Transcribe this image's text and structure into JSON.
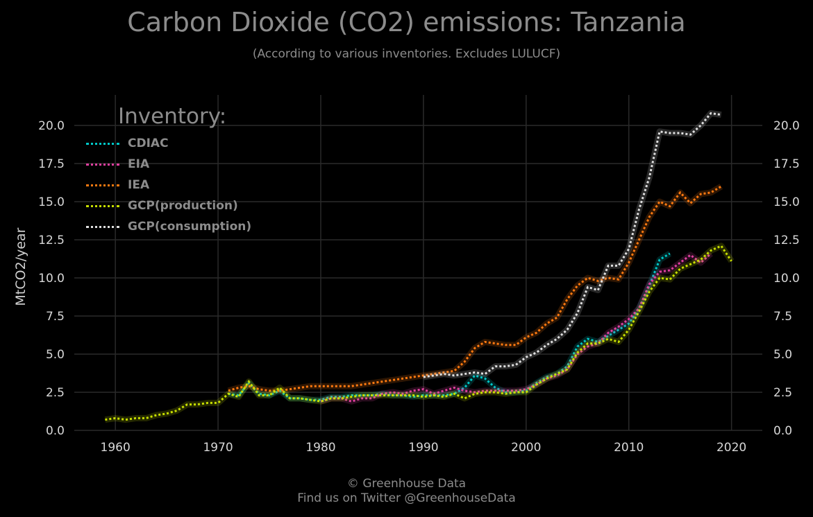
{
  "title": "Carbon Dioxide (CO2) emissions: Tanzania",
  "subtitle": "(According to various inventories. Excludes LULUCF)",
  "footer": {
    "line1": "© Greenhouse Data",
    "line2": "Find us on Twitter @GreenhouseData"
  },
  "legend": {
    "title": "Inventory:",
    "placement": "top-left"
  },
  "chart_data": {
    "type": "line",
    "ylabel": "MtCO2/year",
    "xlim": [
      1956,
      2023
    ],
    "ylim": [
      0,
      22
    ],
    "xticks": [
      "1960",
      "1970",
      "1980",
      "1990",
      "2000",
      "2010",
      "2020"
    ],
    "yticks": [
      "0.0",
      "2.5",
      "5.0",
      "7.5",
      "10.0",
      "12.5",
      "15.0",
      "17.5",
      "20.0"
    ],
    "grid": true,
    "line_style": "dotted",
    "series": [
      {
        "name": "CDIAC",
        "color": "#00c8c8",
        "x": [
          1971,
          1972,
          1973,
          1974,
          1975,
          1976,
          1977,
          1978,
          1979,
          1980,
          1981,
          1982,
          1983,
          1984,
          1985,
          1986,
          1987,
          1988,
          1989,
          1990,
          1991,
          1992,
          1993,
          1994,
          1995,
          1996,
          1997,
          1998,
          1999,
          2000,
          2001,
          2002,
          2003,
          2004,
          2005,
          2006,
          2007,
          2008,
          2009,
          2010,
          2011,
          2012,
          2013,
          2014
        ],
        "y": [
          2.4,
          2.3,
          3.1,
          2.4,
          2.3,
          2.6,
          2.1,
          2.1,
          2.0,
          2.0,
          2.2,
          2.2,
          2.3,
          2.3,
          2.3,
          2.4,
          2.3,
          2.3,
          2.2,
          2.3,
          2.3,
          2.3,
          2.4,
          2.8,
          3.6,
          3.4,
          2.8,
          2.5,
          2.5,
          2.6,
          3.1,
          3.5,
          3.7,
          4.2,
          5.5,
          6.0,
          5.8,
          6.2,
          6.6,
          7.0,
          8.0,
          9.5,
          11.2,
          11.6
        ]
      },
      {
        "name": "EIA",
        "color": "#e040a0",
        "x": [
          1980,
          1981,
          1982,
          1983,
          1984,
          1985,
          1986,
          1987,
          1988,
          1989,
          1990,
          1991,
          1992,
          1993,
          1994,
          1995,
          1996,
          1997,
          1998,
          1999,
          2000,
          2001,
          2002,
          2003,
          2004,
          2005,
          2006,
          2007,
          2008,
          2009,
          2010,
          2011,
          2012,
          2013,
          2014,
          2015,
          2016,
          2017,
          2018
        ],
        "y": [
          1.9,
          2.1,
          2.1,
          1.9,
          2.1,
          2.1,
          2.4,
          2.5,
          2.4,
          2.6,
          2.7,
          2.4,
          2.6,
          2.8,
          2.6,
          2.5,
          2.6,
          2.6,
          2.6,
          2.6,
          2.7,
          3.0,
          3.4,
          3.6,
          4.0,
          5.0,
          5.5,
          5.7,
          6.4,
          6.8,
          7.3,
          8.0,
          9.6,
          10.4,
          10.5,
          11.0,
          11.5,
          11.0,
          11.6
        ]
      },
      {
        "name": "IEA",
        "color": "#ff7a10",
        "x": [
          1971,
          1972,
          1973,
          1974,
          1975,
          1976,
          1977,
          1978,
          1979,
          1980,
          1981,
          1982,
          1983,
          1984,
          1985,
          1986,
          1987,
          1988,
          1989,
          1990,
          1991,
          1992,
          1993,
          1994,
          1995,
          1996,
          1997,
          1998,
          1999,
          2000,
          2001,
          2002,
          2003,
          2004,
          2005,
          2006,
          2007,
          2008,
          2009,
          2010,
          2011,
          2012,
          2013,
          2014,
          2015,
          2016,
          2017,
          2018,
          2019
        ],
        "y": [
          2.6,
          2.8,
          2.9,
          2.7,
          2.6,
          2.6,
          2.7,
          2.8,
          2.9,
          2.9,
          2.9,
          2.9,
          2.9,
          3.0,
          3.1,
          3.2,
          3.3,
          3.4,
          3.5,
          3.6,
          3.7,
          3.8,
          3.9,
          4.5,
          5.4,
          5.8,
          5.7,
          5.6,
          5.6,
          6.1,
          6.4,
          7.0,
          7.4,
          8.6,
          9.5,
          10.0,
          9.8,
          10.0,
          9.9,
          11.0,
          12.5,
          14.0,
          15.0,
          14.7,
          15.6,
          14.9,
          15.5,
          15.6,
          16.0
        ]
      },
      {
        "name": "GCP(production)",
        "color": "#c8e000",
        "x": [
          1959,
          1960,
          1961,
          1962,
          1963,
          1964,
          1965,
          1966,
          1967,
          1968,
          1969,
          1970,
          1971,
          1972,
          1973,
          1974,
          1975,
          1976,
          1977,
          1978,
          1979,
          1980,
          1981,
          1982,
          1983,
          1984,
          1985,
          1986,
          1987,
          1988,
          1989,
          1990,
          1991,
          1992,
          1993,
          1994,
          1995,
          1996,
          1997,
          1998,
          1999,
          2000,
          2001,
          2002,
          2003,
          2004,
          2005,
          2006,
          2007,
          2008,
          2009,
          2010,
          2011,
          2012,
          2013,
          2014,
          2015,
          2016,
          2017,
          2018,
          2019,
          2020
        ],
        "y": [
          0.7,
          0.8,
          0.7,
          0.8,
          0.8,
          1.0,
          1.1,
          1.3,
          1.7,
          1.7,
          1.8,
          1.8,
          2.4,
          2.2,
          3.2,
          2.3,
          2.3,
          2.8,
          2.1,
          2.1,
          2.0,
          1.9,
          2.1,
          2.1,
          2.2,
          2.3,
          2.3,
          2.3,
          2.3,
          2.3,
          2.3,
          2.2,
          2.3,
          2.2,
          2.4,
          2.1,
          2.4,
          2.5,
          2.5,
          2.4,
          2.5,
          2.5,
          3.0,
          3.4,
          3.7,
          4.0,
          5.1,
          5.7,
          5.7,
          6.0,
          5.8,
          6.6,
          7.8,
          9.1,
          10.0,
          9.9,
          10.6,
          10.9,
          11.2,
          11.8,
          12.1,
          11.1
        ]
      },
      {
        "name": "GCP(consumption)",
        "color": "#e0e0e0",
        "x": [
          1990,
          1991,
          1992,
          1993,
          1994,
          1995,
          1996,
          1997,
          1998,
          1999,
          2000,
          2001,
          2002,
          2003,
          2004,
          2005,
          2006,
          2007,
          2008,
          2009,
          2010,
          2011,
          2012,
          2013,
          2014,
          2015,
          2016,
          2017,
          2018,
          2019
        ],
        "y": [
          3.5,
          3.6,
          3.7,
          3.6,
          3.7,
          3.8,
          3.7,
          4.2,
          4.2,
          4.3,
          4.8,
          5.1,
          5.6,
          6.0,
          6.6,
          7.7,
          9.4,
          9.2,
          10.8,
          10.8,
          11.9,
          14.5,
          16.6,
          19.6,
          19.5,
          19.5,
          19.4,
          20.0,
          20.8,
          20.7
        ]
      }
    ]
  }
}
